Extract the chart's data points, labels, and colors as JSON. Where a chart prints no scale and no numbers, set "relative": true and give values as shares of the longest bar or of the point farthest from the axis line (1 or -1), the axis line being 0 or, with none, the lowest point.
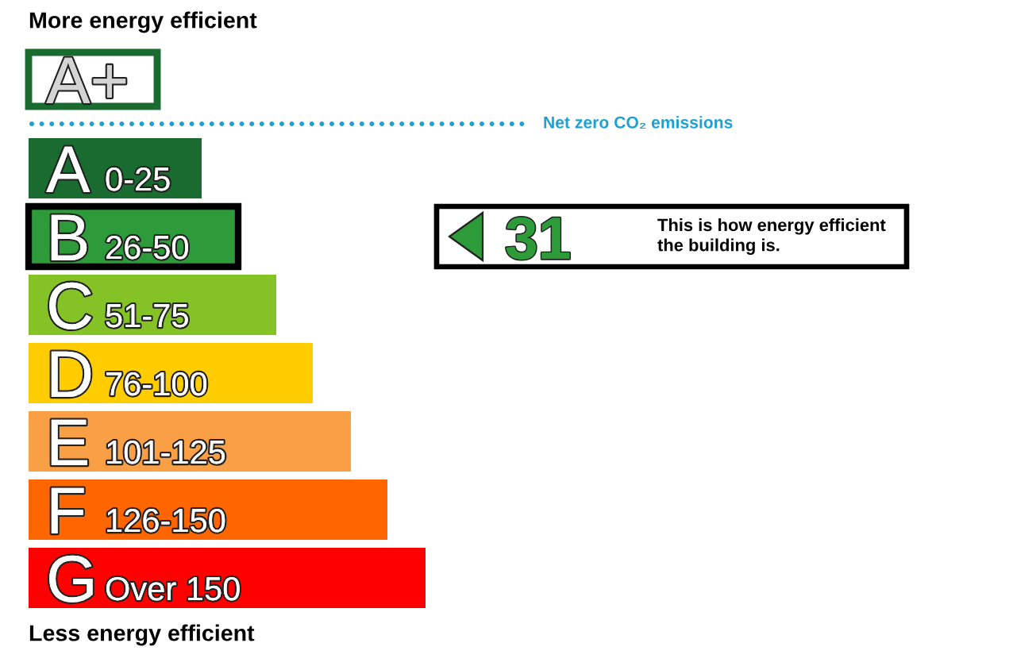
{
  "chart_data": {
    "type": "bar",
    "orientation": "horizontal",
    "relative": true,
    "title": "More energy efficient",
    "categories": [
      "A+",
      "A 0-25",
      "B 26-50",
      "C 51-75",
      "D 76-100",
      "E 101-125",
      "F 126-150",
      "G Over 150"
    ],
    "values": [
      0.324,
      0.436,
      0.528,
      0.624,
      0.716,
      0.812,
      0.904,
      1
    ],
    "colors": [
      "#1a6b30",
      "#1a6b30",
      "#2e9b3a",
      "#85c226",
      "#ffcc00",
      "#f9a046",
      "#ff6600",
      "#ff0000"
    ],
    "annotations": [
      "Net zero CO₂ emissions",
      "31",
      "This is how energy efficient\nthe building is.",
      "Less energy efficient"
    ]
  }
}
